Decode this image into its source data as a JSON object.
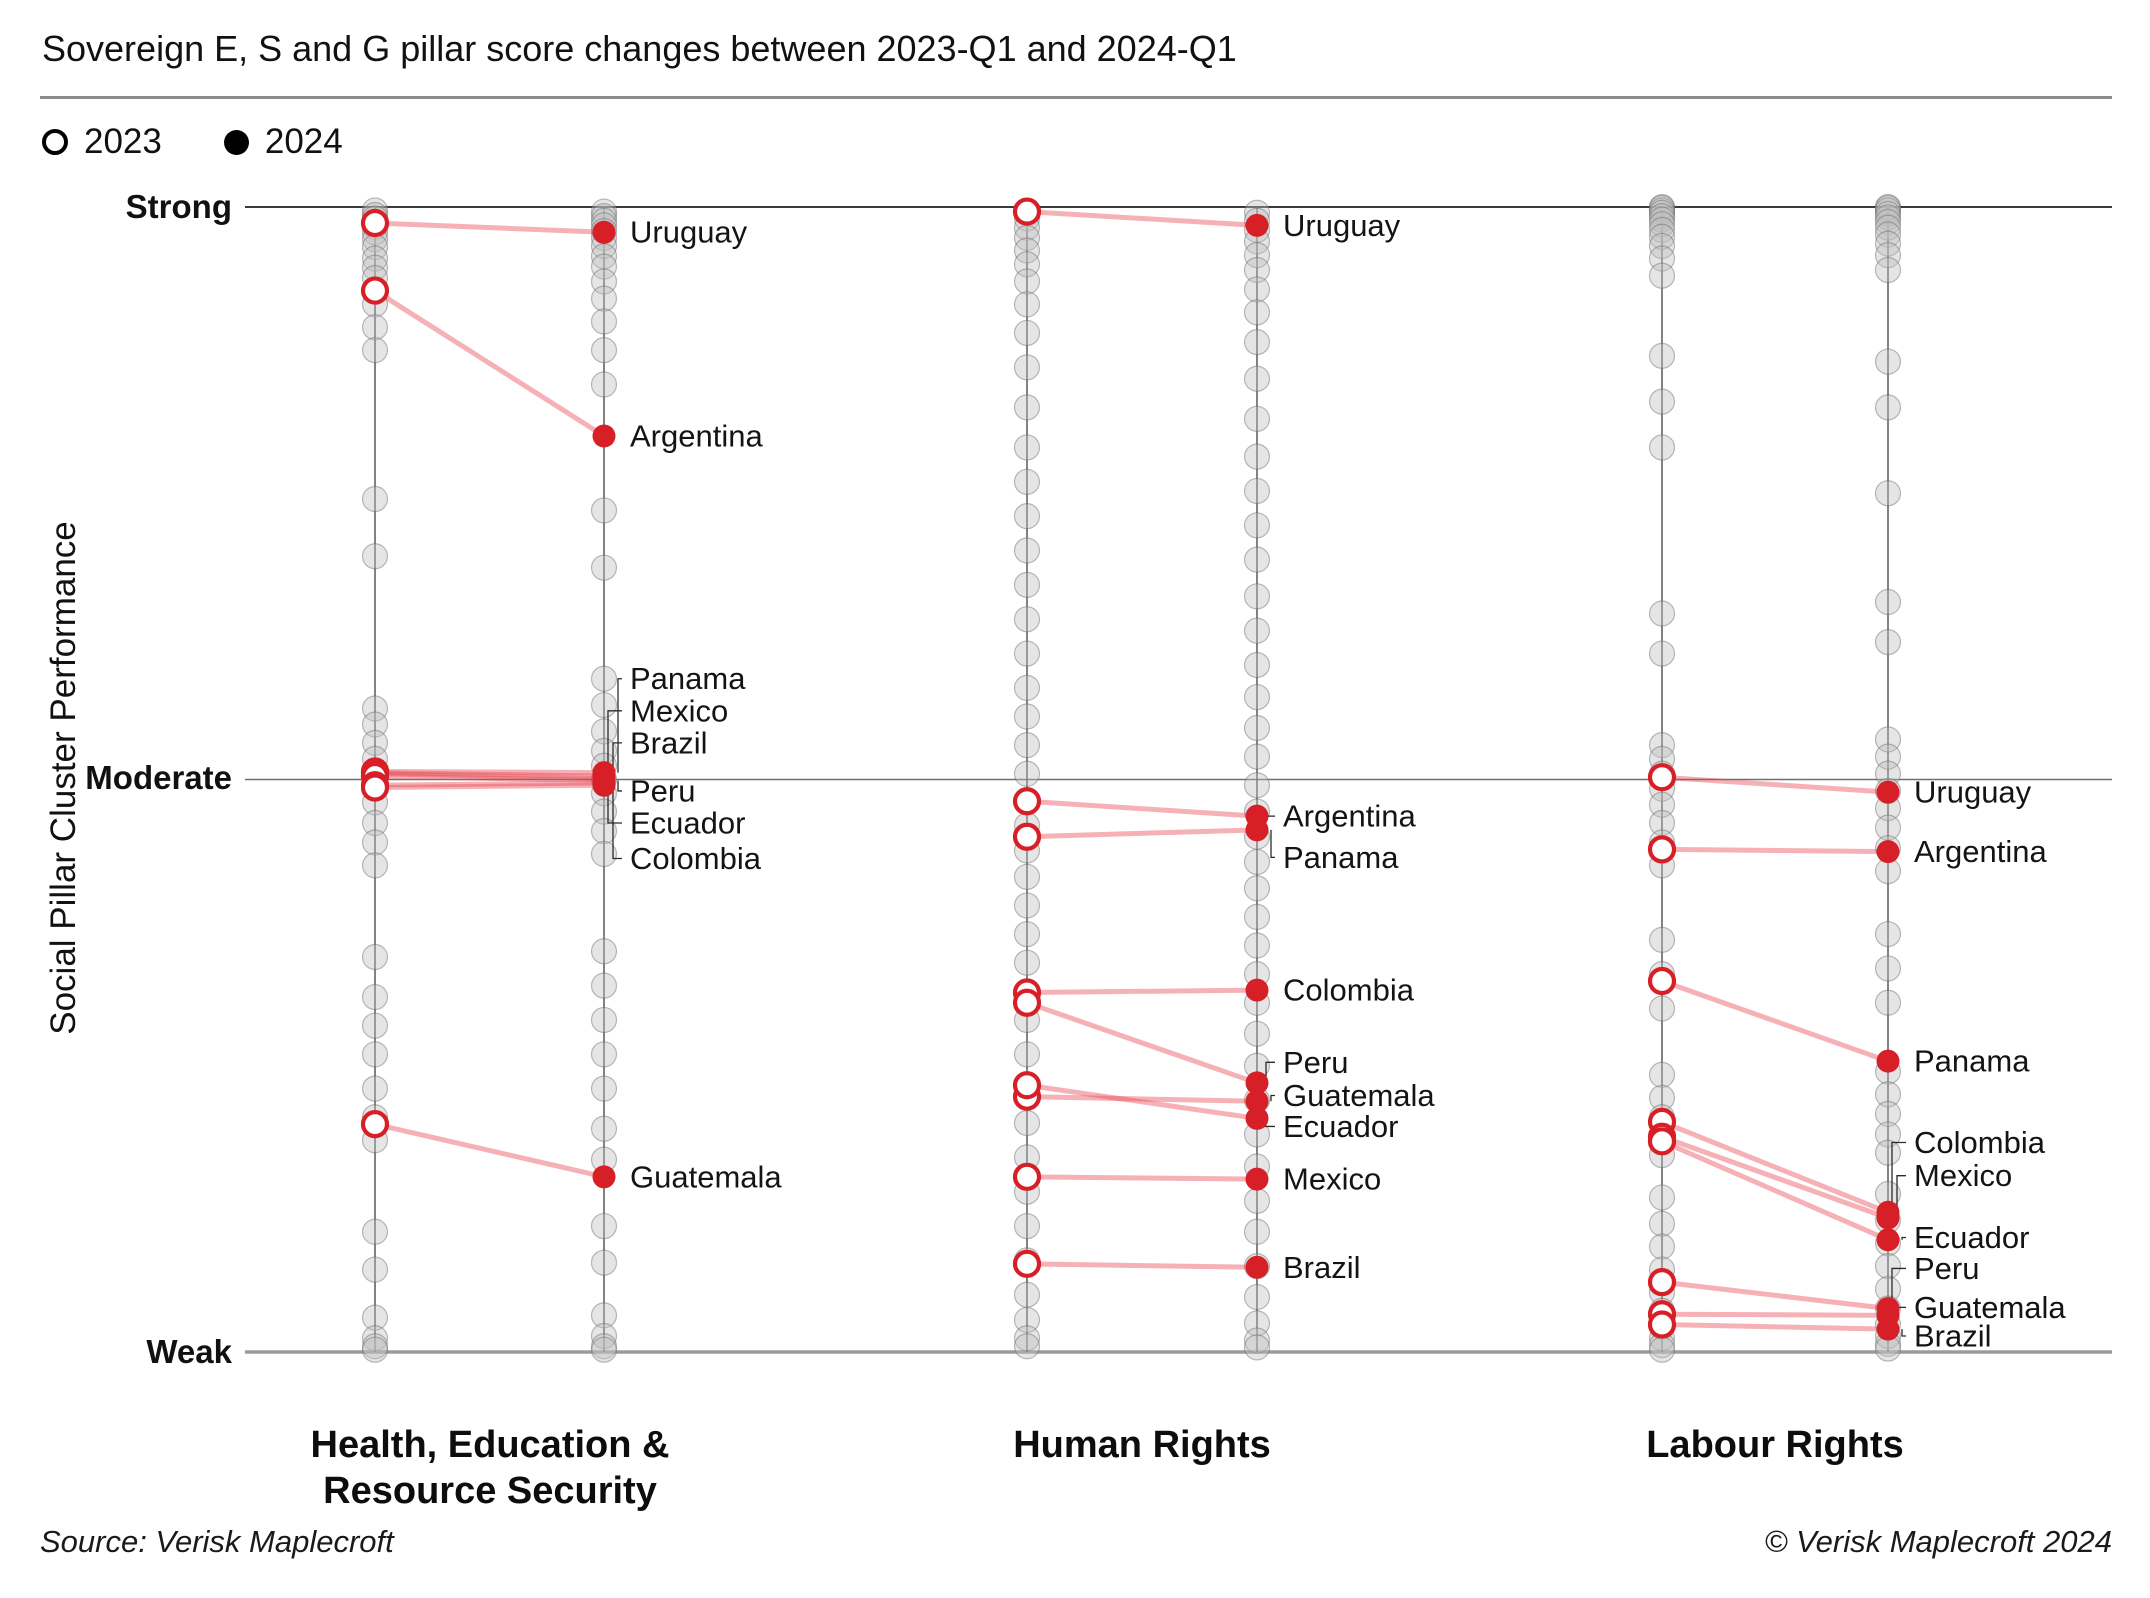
{
  "header": {
    "title": "Sovereign E, S and G pillar score changes between 2023-Q1 and 2024-Q1"
  },
  "legend": {
    "items": [
      {
        "label": "2023",
        "marker": "open-circle"
      },
      {
        "label": "2024",
        "marker": "filled-circle"
      }
    ]
  },
  "y_axis": {
    "title": "Social Pillar Cluster Performance",
    "ticks": [
      {
        "label": "Strong",
        "score": 10
      },
      {
        "label": "Moderate",
        "score": 5
      },
      {
        "label": "Weak",
        "score": 0
      }
    ]
  },
  "footer": {
    "source": "Source: Verisk Maplecroft",
    "copyright": "© Verisk Maplecroft 2024"
  },
  "colors": {
    "highlight_red": "#d71f27",
    "connector_pink": "#e64550",
    "background_dot_fill": "#bebebe",
    "background_dot_stroke": "#696969",
    "grid_strong": "#3a3a3a",
    "grid_moderate": "#6f6f6f",
    "grid_weak": "#9b9b9b",
    "axis_line": "#4d4d4d",
    "text": "#111111"
  },
  "chart_data": {
    "type": "slope-dumbbell",
    "title": "Sovereign E, S and G pillar score changes between 2023-Q1 and 2024-Q1",
    "ylabel": "Social Pillar Cluster Performance",
    "y_scale": {
      "min": 0,
      "max": 10,
      "tick_labels": {
        "10": "Strong",
        "5": "Moderate",
        "0": "Weak"
      }
    },
    "series_years": [
      "2023",
      "2024"
    ],
    "panels": [
      {
        "title_lines": [
          "Health, Education &",
          "Resource Security"
        ],
        "highlights": [
          {
            "country": "Uruguay",
            "s2023": 9.86,
            "s2024": 9.78,
            "label_score": 9.78,
            "leader": false
          },
          {
            "country": "Argentina",
            "s2023": 9.27,
            "s2024": 8.0,
            "label_score": 8.0,
            "leader": false
          },
          {
            "country": "Panama",
            "s2023": 5.07,
            "s2024": 5.06,
            "label_score": 5.88,
            "leader": true
          },
          {
            "country": "Mexico",
            "s2023": 5.06,
            "s2024": 5.03,
            "label_score": 5.6,
            "leader": true
          },
          {
            "country": "Brazil",
            "s2023": 5.05,
            "s2024": 5.01,
            "label_score": 5.32,
            "leader": true
          },
          {
            "country": "Peru",
            "s2023": 5.03,
            "s2024": 4.99,
            "label_score": 4.9,
            "leader": true
          },
          {
            "country": "Ecuador",
            "s2023": 4.95,
            "s2024": 4.97,
            "label_score": 4.62,
            "leader": true
          },
          {
            "country": "Colombia",
            "s2023": 4.93,
            "s2024": 4.95,
            "label_score": 4.31,
            "leader": true
          },
          {
            "country": "Guatemala",
            "s2023": 1.99,
            "s2024": 1.53,
            "label_score": 1.53,
            "leader": false
          }
        ],
        "background_2023": [
          9.97,
          9.93,
          9.9,
          9.87,
          9.83,
          9.78,
          9.72,
          9.65,
          9.55,
          9.47,
          9.38,
          9.28,
          9.15,
          8.95,
          8.75,
          7.45,
          6.95,
          5.62,
          5.48,
          5.32,
          5.18,
          5.06,
          4.94,
          4.8,
          4.62,
          4.45,
          4.25,
          3.45,
          3.1,
          2.85,
          2.6,
          2.3,
          2.05,
          1.85,
          1.05,
          0.72,
          0.3,
          0.12,
          0.05,
          0.02
        ],
        "background_2024": [
          9.96,
          9.92,
          9.88,
          9.84,
          9.79,
          9.73,
          9.66,
          9.57,
          9.48,
          9.35,
          9.2,
          9.0,
          8.75,
          8.45,
          7.35,
          6.85,
          5.88,
          5.65,
          5.42,
          5.25,
          5.12,
          5.0,
          4.88,
          4.72,
          4.55,
          4.35,
          3.5,
          3.2,
          2.9,
          2.6,
          2.3,
          1.95,
          1.68,
          1.1,
          0.78,
          0.32,
          0.14,
          0.05,
          0.02
        ]
      },
      {
        "title_lines": [
          "Human Rights"
        ],
        "highlights": [
          {
            "country": "Uruguay",
            "s2023": 9.96,
            "s2024": 9.84,
            "label_score": 9.84,
            "leader": false
          },
          {
            "country": "Argentina",
            "s2023": 4.81,
            "s2024": 4.68,
            "label_score": 4.68,
            "leader": true
          },
          {
            "country": "Panama",
            "s2023": 4.5,
            "s2024": 4.56,
            "label_score": 4.32,
            "leader": true
          },
          {
            "country": "Colombia",
            "s2023": 3.14,
            "s2024": 3.16,
            "label_score": 3.16,
            "leader": false
          },
          {
            "country": "Peru",
            "s2023": 3.05,
            "s2024": 2.35,
            "label_score": 2.53,
            "leader": true
          },
          {
            "country": "Guatemala",
            "s2023": 2.23,
            "s2024": 2.19,
            "label_score": 2.24,
            "leader": true
          },
          {
            "country": "Ecuador",
            "s2023": 2.33,
            "s2024": 2.04,
            "label_score": 1.97,
            "leader": true
          },
          {
            "country": "Mexico",
            "s2023": 1.53,
            "s2024": 1.51,
            "label_score": 1.51,
            "leader": false
          },
          {
            "country": "Brazil",
            "s2023": 0.77,
            "s2024": 0.74,
            "label_score": 0.74,
            "leader": false
          }
        ],
        "background_2023": [
          9.96,
          9.9,
          9.82,
          9.73,
          9.62,
          9.5,
          9.35,
          9.15,
          8.9,
          8.6,
          8.25,
          7.9,
          7.6,
          7.3,
          7.0,
          6.7,
          6.4,
          6.1,
          5.8,
          5.55,
          5.3,
          5.05,
          4.82,
          4.6,
          4.38,
          4.15,
          3.9,
          3.65,
          3.4,
          3.15,
          2.9,
          2.6,
          2.3,
          2.0,
          1.7,
          1.4,
          1.1,
          0.8,
          0.5,
          0.28,
          0.12,
          0.05
        ],
        "background_2024": [
          9.95,
          9.88,
          9.8,
          9.7,
          9.58,
          9.45,
          9.28,
          9.08,
          8.82,
          8.5,
          8.15,
          7.82,
          7.52,
          7.22,
          6.92,
          6.6,
          6.3,
          6.0,
          5.72,
          5.45,
          5.2,
          4.95,
          4.72,
          4.5,
          4.28,
          4.05,
          3.8,
          3.55,
          3.3,
          3.05,
          2.78,
          2.5,
          2.2,
          1.9,
          1.62,
          1.32,
          1.05,
          0.75,
          0.48,
          0.25,
          0.1,
          0.04
        ]
      },
      {
        "title_lines": [
          "Labour Rights"
        ],
        "highlights": [
          {
            "country": "Uruguay",
            "s2023": 5.02,
            "s2024": 4.89,
            "label_score": 4.89,
            "leader": false
          },
          {
            "country": "Argentina",
            "s2023": 4.39,
            "s2024": 4.37,
            "label_score": 4.37,
            "leader": false
          },
          {
            "country": "Panama",
            "s2023": 3.24,
            "s2024": 2.54,
            "label_score": 2.54,
            "leader": false
          },
          {
            "country": "Colombia",
            "s2023": 2.01,
            "s2024": 1.22,
            "label_score": 1.83,
            "leader": true
          },
          {
            "country": "Mexico",
            "s2023": 1.88,
            "s2024": 1.17,
            "label_score": 1.54,
            "leader": true
          },
          {
            "country": "Ecuador",
            "s2023": 1.84,
            "s2024": 0.98,
            "label_score": 1.0,
            "leader": true
          },
          {
            "country": "Peru",
            "s2023": 0.61,
            "s2024": 0.38,
            "label_score": 0.73,
            "leader": true
          },
          {
            "country": "Guatemala",
            "s2023": 0.33,
            "s2024": 0.32,
            "label_score": 0.39,
            "leader": true
          },
          {
            "country": "Brazil",
            "s2023": 0.24,
            "s2024": 0.2,
            "label_score": 0.14,
            "leader": true
          }
        ],
        "background_2023": [
          10,
          9.99,
          9.97,
          9.95,
          9.92,
          9.89,
          9.85,
          9.8,
          9.74,
          9.66,
          9.55,
          9.4,
          8.7,
          8.3,
          7.9,
          6.45,
          6.1,
          5.3,
          5.18,
          5.05,
          4.92,
          4.78,
          4.62,
          4.45,
          4.25,
          3.6,
          3.3,
          3.0,
          2.42,
          2.22,
          2.05,
          1.88,
          1.72,
          1.35,
          1.12,
          0.92,
          0.72,
          0.52,
          0.36,
          0.22,
          0.12,
          0.06,
          0.02
        ],
        "background_2024": [
          10,
          9.99,
          9.97,
          9.94,
          9.91,
          9.87,
          9.82,
          9.76,
          9.68,
          9.58,
          9.45,
          8.65,
          8.25,
          7.5,
          6.55,
          6.2,
          5.35,
          5.2,
          5.05,
          4.9,
          4.75,
          4.58,
          4.4,
          4.2,
          3.65,
          3.35,
          3.05,
          2.45,
          2.25,
          2.08,
          1.9,
          1.74,
          1.38,
          1.15,
          0.95,
          0.75,
          0.55,
          0.38,
          0.24,
          0.14,
          0.07,
          0.03
        ]
      }
    ]
  }
}
